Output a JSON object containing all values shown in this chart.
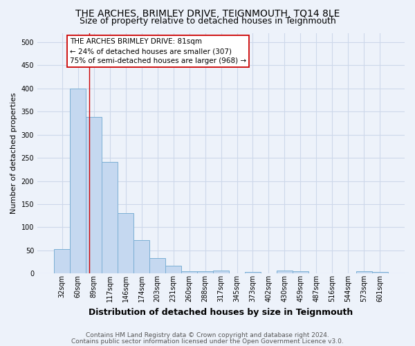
{
  "title": "THE ARCHES, BRIMLEY DRIVE, TEIGNMOUTH, TQ14 8LE",
  "subtitle": "Size of property relative to detached houses in Teignmouth",
  "xlabel": "Distribution of detached houses by size in Teignmouth",
  "ylabel": "Number of detached properties",
  "categories": [
    "32sqm",
    "60sqm",
    "89sqm",
    "117sqm",
    "146sqm",
    "174sqm",
    "203sqm",
    "231sqm",
    "260sqm",
    "288sqm",
    "317sqm",
    "345sqm",
    "373sqm",
    "402sqm",
    "430sqm",
    "459sqm",
    "487sqm",
    "516sqm",
    "544sqm",
    "573sqm",
    "601sqm"
  ],
  "values": [
    53,
    400,
    338,
    241,
    130,
    72,
    34,
    17,
    5,
    5,
    6,
    0,
    4,
    0,
    6,
    5,
    0,
    0,
    0,
    5,
    4
  ],
  "bar_color": "#c5d8f0",
  "bar_edge_color": "#7bafd4",
  "grid_color": "#cdd8ea",
  "background_color": "#edf2fa",
  "property_line_color": "#cc0000",
  "annotation_text": "THE ARCHES BRIMLEY DRIVE: 81sqm\n← 24% of detached houses are smaller (307)\n75% of semi-detached houses are larger (968) →",
  "annotation_box_color": "#ffffff",
  "annotation_box_edge": "#cc0000",
  "footer1": "Contains HM Land Registry data © Crown copyright and database right 2024.",
  "footer2": "Contains public sector information licensed under the Open Government Licence v3.0.",
  "ylim": [
    0,
    520
  ],
  "yticks": [
    0,
    50,
    100,
    150,
    200,
    250,
    300,
    350,
    400,
    450,
    500
  ],
  "title_fontsize": 10,
  "subtitle_fontsize": 9,
  "xlabel_fontsize": 9,
  "ylabel_fontsize": 8,
  "tick_fontsize": 7,
  "annotation_fontsize": 7.5,
  "footer_fontsize": 6.5
}
